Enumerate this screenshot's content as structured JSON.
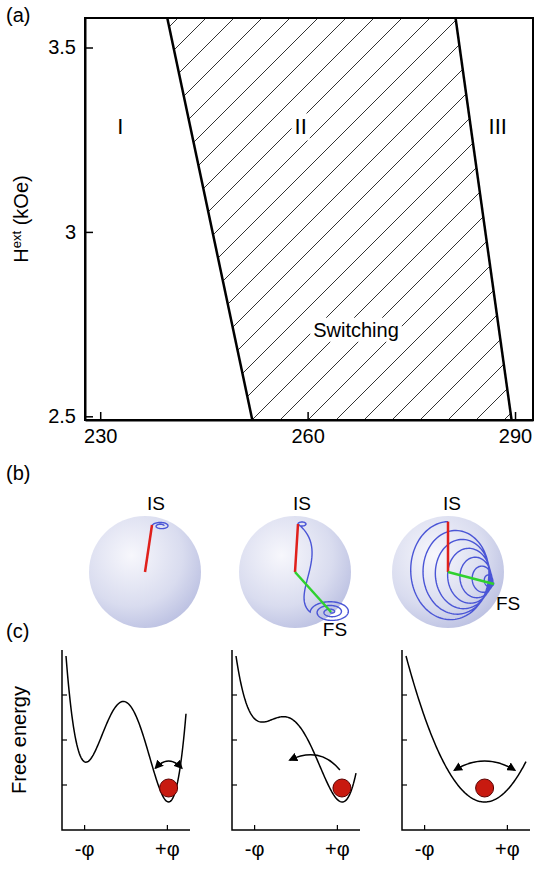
{
  "chart_data": {
    "type": "line",
    "y_label": [
      {
        "text": "H"
      },
      {
        "text": "ext",
        "sup": true
      },
      {
        "text": " (kOe)"
      }
    ],
    "xlim": [
      227.8,
      292.6
    ],
    "ylim": [
      2.49,
      3.58
    ],
    "xticks": [
      230,
      260,
      290
    ],
    "yticks": [
      2.5,
      3,
      3.5
    ],
    "series": [
      {
        "x": [
          239.7,
          252.0
        ],
        "y": [
          3.58,
          2.49
        ],
        "color": "#000000",
        "line_style": "solid"
      },
      {
        "x": [
          281.4,
          289.5
        ],
        "y": [
          3.58,
          2.49
        ],
        "color": "#000000",
        "line_style": "solid"
      }
    ],
    "annotations": [
      {
        "text": "I",
        "x": 232.9,
        "y": 3.28
      },
      {
        "text": "II",
        "x": 259.0,
        "y": 3.28
      },
      {
        "text": "III",
        "x": 287.5,
        "y": 3.28
      },
      {
        "text": "Switching",
        "x": 267.0,
        "y": 2.73
      }
    ]
  },
  "figure": {
    "panel_labels": [
      "(a)",
      "(b)",
      "(c)"
    ],
    "spheres": [
      {
        "labels": [
          "IS"
        ]
      },
      {
        "labels": [
          "IS",
          "FS"
        ]
      },
      {
        "labels": [
          "IS",
          "FS"
        ]
      }
    ],
    "energy": {
      "y_label": "Free energy",
      "x_tick_labels": [
        "-φ",
        "+φ"
      ]
    }
  }
}
